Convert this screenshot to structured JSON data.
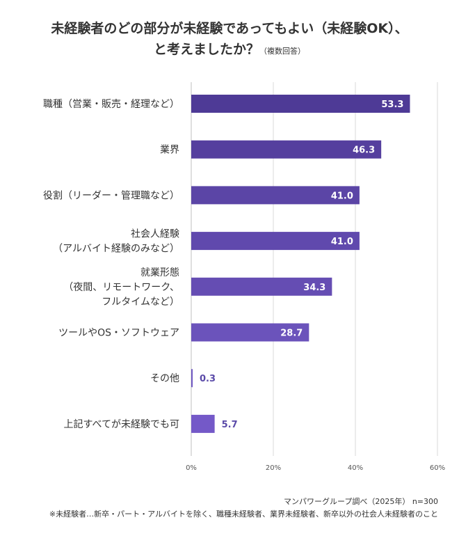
{
  "title": {
    "line1": "未経験者のどの部分が未経験であってもよい（未経験OK）、",
    "line2": "と考えましたか？",
    "note": "（複数回答）"
  },
  "chart_data": {
    "type": "bar",
    "orientation": "horizontal",
    "categories": [
      [
        "職種（営業・販売・経理など）"
      ],
      [
        "業界"
      ],
      [
        "役割（リーダー・管理職など）"
      ],
      [
        "社会人経験",
        "（アルバイト経験のみなど）"
      ],
      [
        "就業形態",
        "（夜間、リモートワーク、",
        "フルタイムなど）"
      ],
      [
        "ツールやOS・ソフトウェア"
      ],
      [
        "その他"
      ],
      [
        "上記すべてが未経験でも可"
      ]
    ],
    "values": [
      53.3,
      46.3,
      41.0,
      41.0,
      34.3,
      28.7,
      0.3,
      5.7
    ],
    "value_labels": [
      "53.3",
      "46.3",
      "41.0",
      "41.0",
      "34.3",
      "28.7",
      "0.3",
      "5.7"
    ],
    "xlim": [
      0,
      60
    ],
    "xticks": [
      "0%",
      "20%",
      "40%",
      "60%"
    ],
    "xtick_values": [
      0,
      20,
      40,
      60
    ],
    "grid": true,
    "colors": [
      "#4e3a96",
      "#553f9e",
      "#5b45a6",
      "#6049ad",
      "#654db3",
      "#6b53bb",
      "#6f57c2",
      "#7459c8"
    ],
    "label_color_inside": "#ffffff",
    "label_color_outside": "#5a4aa8"
  },
  "source": "マンパワーグループ調べ（2025年） n=300",
  "footnote": "※未経験者…新卒・パート・アルバイトを除く、職種未経験者、業界未経験者、新卒以外の社会人未経験者のこと"
}
